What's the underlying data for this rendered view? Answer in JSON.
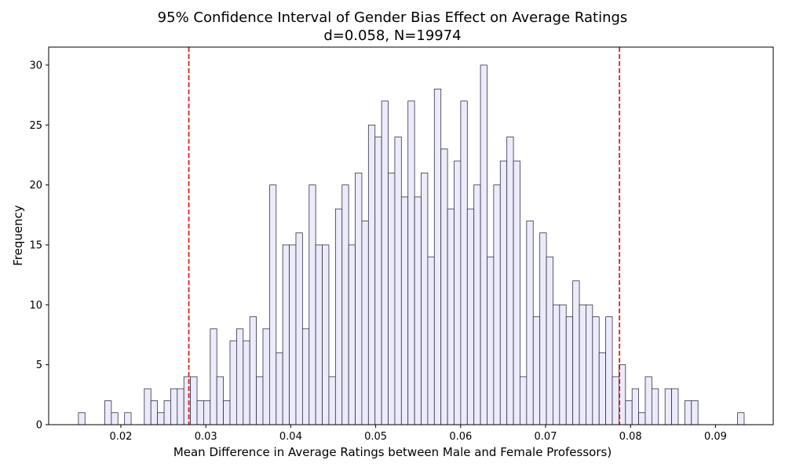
{
  "chart_data": {
    "type": "bar",
    "title": "95% Confidence Interval of Gender Bias Effect on Average Ratings",
    "subtitle": "d=0.058, N=19974",
    "xlabel": "Mean Difference in Average Ratings between Male and Female Professors)",
    "ylabel": "Frequency",
    "xlim": [
      0.0115,
      0.0968
    ],
    "ylim": [
      0,
      31.5
    ],
    "xticks": [
      0.02,
      0.03,
      0.04,
      0.05,
      0.06,
      0.07,
      0.08,
      0.09
    ],
    "xtick_labels": [
      "0.02",
      "0.03",
      "0.04",
      "0.05",
      "0.06",
      "0.07",
      "0.08",
      "0.09"
    ],
    "yticks": [
      0,
      5,
      10,
      15,
      20,
      25,
      30
    ],
    "ytick_labels": [
      "0",
      "5",
      "10",
      "15",
      "20",
      "25",
      "30"
    ],
    "bin_start": 0.015,
    "bin_width": 0.000776,
    "values": [
      1,
      0,
      0,
      0,
      2,
      1,
      0,
      1,
      0,
      0,
      3,
      2,
      1,
      2,
      3,
      3,
      4,
      4,
      2,
      2,
      8,
      4,
      2,
      7,
      8,
      7,
      9,
      4,
      8,
      20,
      6,
      15,
      15,
      16,
      8,
      20,
      15,
      15,
      4,
      18,
      20,
      15,
      21,
      17,
      25,
      24,
      27,
      21,
      24,
      19,
      27,
      19,
      21,
      14,
      28,
      23,
      18,
      22,
      27,
      18,
      20,
      30,
      14,
      20,
      22,
      24,
      22,
      4,
      17,
      9,
      16,
      14,
      10,
      10,
      9,
      12,
      10,
      10,
      9,
      6,
      9,
      4,
      5,
      2,
      3,
      1,
      4,
      3,
      0,
      3,
      3,
      0,
      2,
      2,
      0,
      0,
      0,
      0,
      0,
      0,
      1
    ],
    "bar_fill": "#ecebfb",
    "bar_edge": "#333344",
    "ci_lines": [
      0.028,
      0.0787
    ],
    "ci_color": "#e0201b",
    "grid": false
  }
}
